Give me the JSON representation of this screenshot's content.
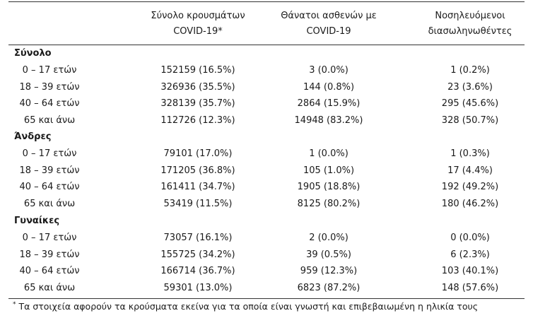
{
  "header": {
    "col1_line1": "Σύνολο κρουσμάτων",
    "col1_line2": "COVID-19*",
    "col2_line1": "Θάνατοι ασθενών με",
    "col2_line2": "COVID-19",
    "col3_line1": "Νοσηλευόμενοι",
    "col3_line2": "διασωληνωθέντες"
  },
  "sections": [
    {
      "title": "Σύνολο",
      "rows": [
        {
          "label": "0 – 17 ετών",
          "cases": "152159 (16.5%)",
          "deaths": "3 (0.0%)",
          "icu": "1 (0.2%)"
        },
        {
          "label": "18 – 39 ετών",
          "cases": "326936 (35.5%)",
          "deaths": "144 (0.8%)",
          "icu": "23 (3.6%)"
        },
        {
          "label": "40 – 64 ετών",
          "cases": "328139 (35.7%)",
          "deaths": "2864 (15.9%)",
          "icu": "295 (45.6%)"
        },
        {
          "label": "65 και άνω",
          "cases": "112726 (12.3%)",
          "deaths": "14948 (83.2%)",
          "icu": "328 (50.7%)"
        }
      ]
    },
    {
      "title": "Άνδρες",
      "rows": [
        {
          "label": "0 – 17 ετών",
          "cases": "79101 (17.0%)",
          "deaths": "1 (0.0%)",
          "icu": "1 (0.3%)"
        },
        {
          "label": "18 – 39 ετών",
          "cases": "171205 (36.8%)",
          "deaths": "105 (1.0%)",
          "icu": "17 (4.4%)"
        },
        {
          "label": "40 – 64 ετών",
          "cases": "161411 (34.7%)",
          "deaths": "1905 (18.8%)",
          "icu": "192 (49.2%)"
        },
        {
          "label": "65 και άνω",
          "cases": "53419 (11.5%)",
          "deaths": "8125 (80.2%)",
          "icu": "180 (46.2%)"
        }
      ]
    },
    {
      "title": "Γυναίκες",
      "rows": [
        {
          "label": "0 – 17 ετών",
          "cases": "73057 (16.1%)",
          "deaths": "2 (0.0%)",
          "icu": "0 (0.0%)"
        },
        {
          "label": "18 – 39 ετών",
          "cases": "155725 (34.2%)",
          "deaths": "39 (0.5%)",
          "icu": "6 (2.3%)"
        },
        {
          "label": "40 – 64 ετών",
          "cases": "166714 (36.7%)",
          "deaths": "959 (12.3%)",
          "icu": "103 (40.1%)"
        },
        {
          "label": "65 και άνω",
          "cases": "59301 (13.0%)",
          "deaths": "6823 (87.2%)",
          "icu": "148 (57.6%)"
        }
      ]
    }
  ],
  "footnote": {
    "marker": "*",
    "text": " Τα στοιχεία αφορούν τα κρούσματα εκείνα για τα οποία είναι γνωστή και επιβεβαιωμένη η ηλικία τους"
  }
}
